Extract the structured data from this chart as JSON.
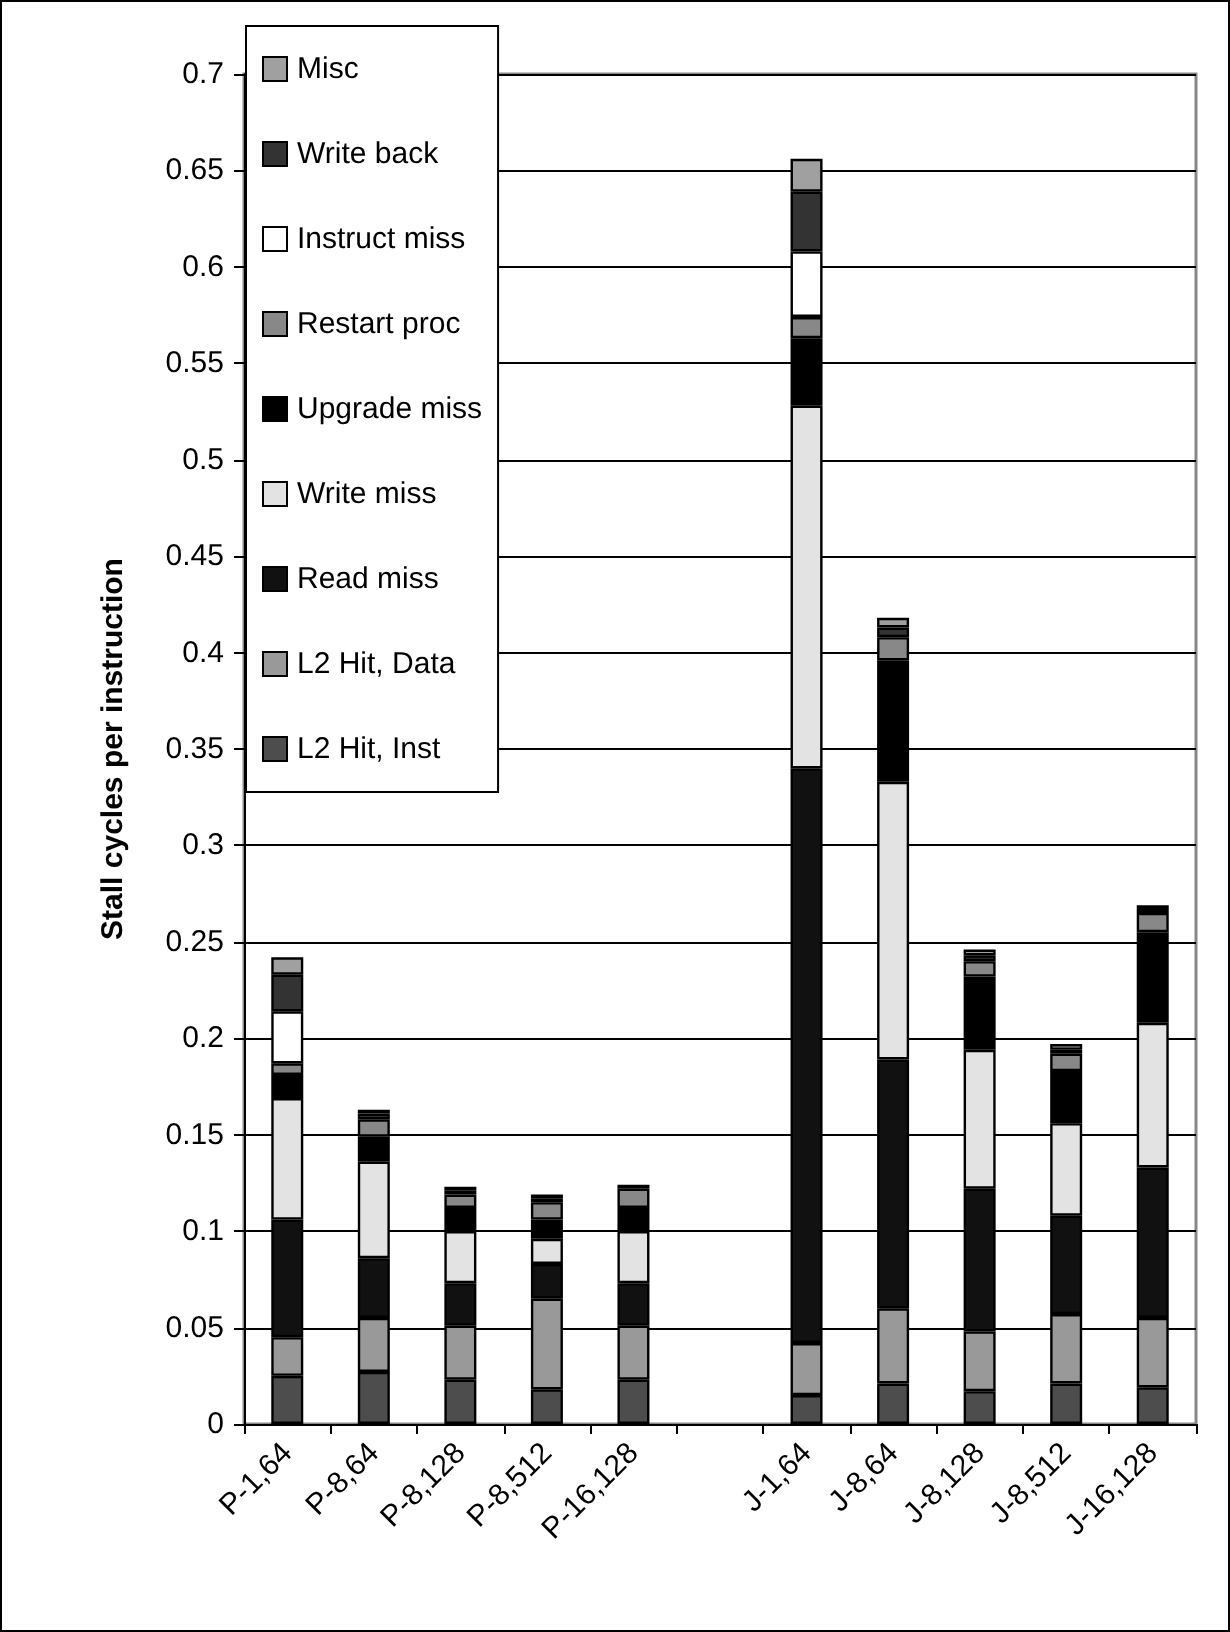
{
  "chart_data": {
    "type": "bar",
    "stacked": true,
    "ylabel": "Stall cycles per instruction",
    "categories": [
      "P-1,64",
      "P-8,64",
      "P-8,128",
      "P-8,512",
      "P-16,128",
      null,
      "J-1,64",
      "J-8,64",
      "J-8,128",
      "J-8,512",
      "J-16,128"
    ],
    "series": [
      {
        "name": "L2 Hit, Inst",
        "color": "#4d4d4d",
        "values": [
          0.025,
          0.027,
          0.023,
          0.018,
          0.023,
          null,
          0.015,
          0.021,
          0.017,
          0.021,
          0.019
        ]
      },
      {
        "name": "L2 Hit, Data",
        "color": "#999999",
        "values": [
          0.02,
          0.028,
          0.028,
          0.047,
          0.028,
          null,
          0.027,
          0.039,
          0.031,
          0.036,
          0.036
        ]
      },
      {
        "name": "Read miss",
        "color": "#111111",
        "values": [
          0.061,
          0.031,
          0.022,
          0.018,
          0.022,
          null,
          0.298,
          0.129,
          0.074,
          0.051,
          0.078
        ]
      },
      {
        "name": "Write miss",
        "color": "#e3e3e3",
        "values": [
          0.063,
          0.05,
          0.027,
          0.013,
          0.027,
          null,
          0.188,
          0.144,
          0.072,
          0.048,
          0.075
        ]
      },
      {
        "name": "Upgrade miss",
        "color": "#000000",
        "values": [
          0.012,
          0.013,
          0.012,
          0.01,
          0.012,
          null,
          0.035,
          0.063,
          0.038,
          0.027,
          0.047
        ]
      },
      {
        "name": "Restart proc",
        "color": "#888888",
        "values": [
          0.006,
          0.009,
          0.007,
          0.009,
          0.01,
          null,
          0.011,
          0.012,
          0.008,
          0.009,
          0.01
        ]
      },
      {
        "name": "Instruct miss",
        "color": "#ffffff",
        "values": [
          0.027,
          null,
          null,
          null,
          null,
          null,
          0.034,
          null,
          null,
          null,
          null
        ]
      },
      {
        "name": "Write back",
        "color": "#333333",
        "values": [
          0.019,
          0.003,
          0.002,
          0.002,
          0.002,
          null,
          0.031,
          0.005,
          0.003,
          0.002,
          0.002
        ]
      },
      {
        "name": "Misc",
        "color": "#a0a0a0",
        "values": [
          0.009,
          0.002,
          0.002,
          0.002,
          null,
          null,
          0.017,
          0.005,
          0.003,
          0.003,
          0.002
        ]
      }
    ],
    "ylim": [
      0,
      0.7
    ],
    "yticks": [
      0,
      0.05,
      0.1,
      0.15,
      0.2,
      0.25,
      0.3,
      0.35,
      0.4,
      0.45,
      0.5,
      0.55,
      0.6,
      0.65,
      0.7
    ],
    "grid": "y",
    "legend": "top left"
  }
}
